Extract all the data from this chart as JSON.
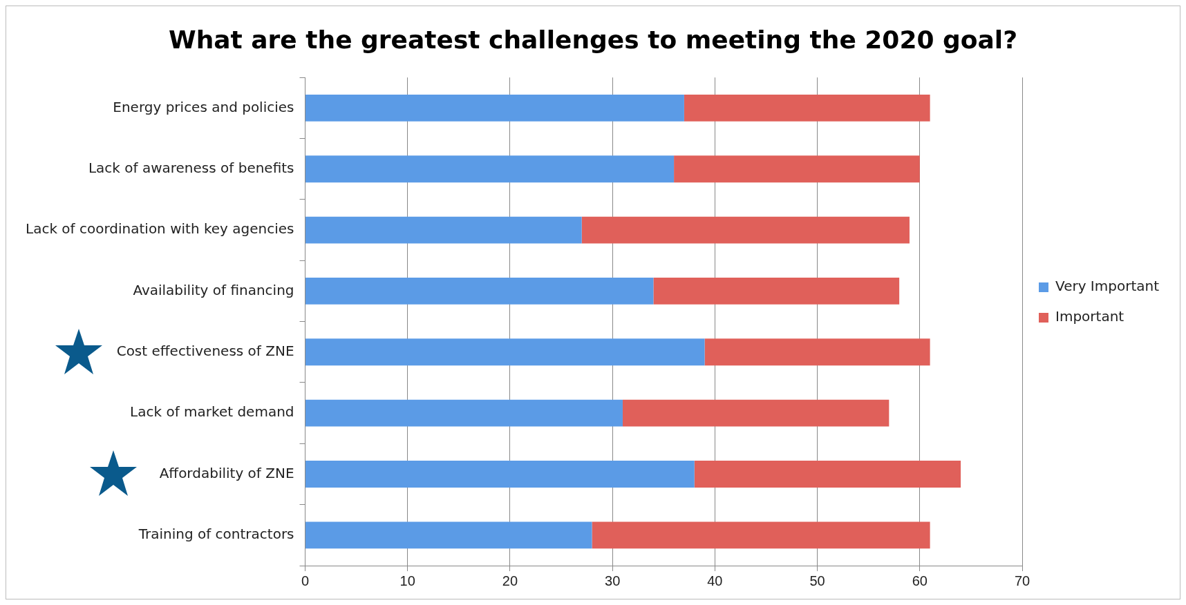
{
  "chart_data": {
    "type": "bar",
    "orientation": "horizontal",
    "stacked": true,
    "title": "What are the greatest challenges to meeting the 2020 goal?",
    "categories": [
      "Energy prices and policies",
      "Lack of awareness of benefits",
      "Lack of coordination with key agencies",
      "Availability of financing",
      "Cost effectiveness of ZNE",
      "Lack of market demand",
      "Affordability of ZNE",
      "Training of contractors"
    ],
    "series": [
      {
        "name": "Very Important",
        "color": "#5b9be6",
        "values": [
          37,
          36,
          27,
          34,
          39,
          31,
          38,
          28
        ]
      },
      {
        "name": "Important",
        "color": "#e0605a",
        "values": [
          24,
          24,
          32,
          24,
          22,
          26,
          26,
          33
        ]
      }
    ],
    "xlim": [
      0,
      70
    ],
    "xticks": [
      0,
      10,
      20,
      30,
      40,
      50,
      60,
      70
    ],
    "grid": "x",
    "legend": "right"
  }
}
